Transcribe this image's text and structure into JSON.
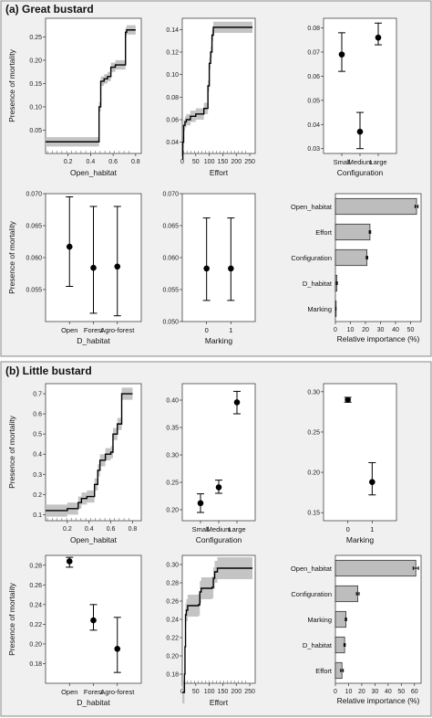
{
  "sections": [
    {
      "label": "(a) Great bustard",
      "charts": [
        {
          "kind": "pdp",
          "x": [
            0.0,
            0.47,
            0.475,
            0.49,
            0.52,
            0.55,
            0.58,
            0.62,
            0.66,
            0.7,
            0.71,
            0.72,
            0.8
          ],
          "y": [
            0.025,
            0.025,
            0.1,
            0.155,
            0.16,
            0.165,
            0.185,
            0.19,
            0.19,
            0.19,
            0.26,
            0.265,
            0.265
          ],
          "band": 0.01,
          "xlim": [
            0.0,
            0.85
          ],
          "ylim": [
            0.0,
            0.29
          ],
          "xticks": [
            0.2,
            0.4,
            0.6,
            0.8
          ],
          "yticks": [
            0.05,
            0.1,
            0.15,
            0.2,
            0.25
          ],
          "ticklabels_x": [
            "0.2",
            "0.4",
            "0.6",
            "0.8"
          ],
          "ticklabels_y": [
            "0.05",
            "0.10",
            "0.15",
            "0.20",
            "0.25"
          ],
          "xlabel": "Open_habitat",
          "ylabel": "Presence of mortality"
        },
        {
          "kind": "pdp",
          "x": [
            0,
            2,
            5,
            10,
            15,
            30,
            50,
            80,
            95,
            100,
            105,
            110,
            115,
            130,
            260
          ],
          "y": [
            0.025,
            0.04,
            0.055,
            0.058,
            0.06,
            0.063,
            0.065,
            0.07,
            0.09,
            0.11,
            0.12,
            0.135,
            0.142,
            0.142,
            0.142
          ],
          "band": 0.005,
          "xlim": [
            0,
            270
          ],
          "ylim": [
            0.03,
            0.15
          ],
          "xticks": [
            0,
            50,
            100,
            150,
            200,
            250
          ],
          "yticks": [
            0.04,
            0.06,
            0.08,
            0.1,
            0.12,
            0.14
          ],
          "ticklabels_x": [
            "0",
            "50",
            "100",
            "150",
            "200",
            "250"
          ],
          "ticklabels_y": [
            "0.04",
            "0.06",
            "0.08",
            "0.10",
            "0.12",
            "0.14"
          ],
          "xlabel": "Effort",
          "ylabel": ""
        },
        {
          "kind": "cat",
          "categories": [
            "Small",
            "Medium",
            "Large"
          ],
          "values": [
            0.069,
            0.037,
            0.076
          ],
          "lo": [
            0.062,
            0.03,
            0.073
          ],
          "hi": [
            0.078,
            0.045,
            0.082
          ],
          "ylim": [
            0.028,
            0.084
          ],
          "yticks": [
            0.03,
            0.04,
            0.05,
            0.06,
            0.07,
            0.08
          ],
          "ticklabels_y": [
            "0.03",
            "0.04",
            "0.05",
            "0.06",
            "0.07",
            "0.08"
          ],
          "xlabel": "Configuration",
          "ylabel": ""
        },
        {
          "kind": "cat",
          "categories": [
            "Open",
            "Forest",
            "Agro-forest"
          ],
          "values": [
            0.0617,
            0.0584,
            0.0586
          ],
          "lo": [
            0.0555,
            0.0513,
            0.0509
          ],
          "hi": [
            0.0695,
            0.068,
            0.068
          ],
          "ylim": [
            0.05,
            0.07
          ],
          "yticks": [
            0.055,
            0.06,
            0.065,
            0.07
          ],
          "ticklabels_y": [
            "0.055",
            "0.060",
            "0.065",
            "0.070"
          ],
          "xlabel": "D_habitat",
          "ylabel": "Presence of mortality"
        },
        {
          "kind": "cat",
          "categories": [
            "0",
            "1"
          ],
          "values": [
            0.0583,
            0.0583
          ],
          "lo": [
            0.0533,
            0.0533
          ],
          "hi": [
            0.0662,
            0.0662
          ],
          "ylim": [
            0.05,
            0.07
          ],
          "yticks": [
            0.05,
            0.055,
            0.06,
            0.065,
            0.07
          ],
          "ticklabels_y": [
            "0.050",
            "0.055",
            "0.060",
            "0.065",
            "0.070"
          ],
          "xlabel": "Marking",
          "ylabel": ""
        },
        {
          "kind": "bar",
          "categories": [
            "Open_habitat",
            "Effort",
            "Configuration",
            "D_habitat",
            "Marking"
          ],
          "values": [
            54,
            23,
            21,
            1,
            0.3
          ],
          "err": [
            1,
            0.5,
            0.5,
            0.3,
            0.1
          ],
          "xlim": [
            0,
            57
          ],
          "xticks": [
            0,
            10,
            20,
            30,
            40,
            50
          ],
          "ticklabels_x": [
            "0",
            "10",
            "20",
            "30",
            "40",
            "50"
          ],
          "xlabel": "Relative importance (%)",
          "ylabel": ""
        }
      ]
    },
    {
      "label": "(b) Little bustard",
      "charts": [
        {
          "kind": "pdp",
          "x": [
            0.0,
            0.1,
            0.2,
            0.3,
            0.33,
            0.38,
            0.45,
            0.48,
            0.5,
            0.55,
            0.6,
            0.62,
            0.66,
            0.7,
            0.8
          ],
          "y": [
            0.12,
            0.12,
            0.13,
            0.16,
            0.18,
            0.19,
            0.25,
            0.32,
            0.37,
            0.4,
            0.41,
            0.5,
            0.55,
            0.7,
            0.7
          ],
          "band": 0.03,
          "xlim": [
            0.0,
            0.88
          ],
          "ylim": [
            0.07,
            0.75
          ],
          "xticks": [
            0.2,
            0.4,
            0.6,
            0.8
          ],
          "yticks": [
            0.1,
            0.2,
            0.3,
            0.4,
            0.5,
            0.6,
            0.7
          ],
          "ticklabels_x": [
            "0.2",
            "0.4",
            "0.6",
            "0.8"
          ],
          "ticklabels_y": [
            "0.1",
            "0.2",
            "0.3",
            "0.4",
            "0.5",
            "0.6",
            "0.7"
          ],
          "xlabel": "Open_habitat",
          "ylabel": "Presence of mortality"
        },
        {
          "kind": "cat",
          "categories": [
            "Small",
            "Medium",
            "Large"
          ],
          "values": [
            0.212,
            0.241,
            0.396
          ],
          "lo": [
            0.195,
            0.23,
            0.375
          ],
          "hi": [
            0.229,
            0.254,
            0.416
          ],
          "ylim": [
            0.18,
            0.43
          ],
          "yticks": [
            0.2,
            0.25,
            0.3,
            0.35,
            0.4
          ],
          "ticklabels_y": [
            "0.20",
            "0.25",
            "0.30",
            "0.35",
            "0.40"
          ],
          "xlabel": "Configuration",
          "ylabel": ""
        },
        {
          "kind": "cat",
          "categories": [
            "0",
            "1"
          ],
          "values": [
            0.29,
            0.188
          ],
          "lo": [
            0.287,
            0.172
          ],
          "hi": [
            0.293,
            0.212
          ],
          "ylim": [
            0.14,
            0.31
          ],
          "yticks": [
            0.15,
            0.2,
            0.25,
            0.3
          ],
          "ticklabels_y": [
            "0.15",
            "0.20",
            "0.25",
            "0.30"
          ],
          "xlabel": "Marking",
          "ylabel": ""
        },
        {
          "kind": "cat",
          "categories": [
            "Open",
            "Forest",
            "Agro-forest"
          ],
          "values": [
            0.284,
            0.224,
            0.195
          ],
          "lo": [
            0.278,
            0.214,
            0.171
          ],
          "hi": [
            0.288,
            0.24,
            0.227
          ],
          "ylim": [
            0.16,
            0.29
          ],
          "yticks": [
            0.18,
            0.2,
            0.22,
            0.24,
            0.26,
            0.28
          ],
          "ticklabels_y": [
            "0.18",
            "0.20",
            "0.22",
            "0.24",
            "0.26",
            "0.28"
          ],
          "xlabel": "D_habitat",
          "ylabel": "Presence of mortality"
        },
        {
          "kind": "pdp",
          "x": [
            0,
            8,
            10,
            12,
            15,
            20,
            40,
            60,
            65,
            70,
            110,
            115,
            120,
            130,
            260
          ],
          "y": [
            0.16,
            0.18,
            0.21,
            0.245,
            0.25,
            0.255,
            0.255,
            0.256,
            0.27,
            0.274,
            0.275,
            0.285,
            0.292,
            0.296,
            0.296
          ],
          "band": 0.012,
          "xlim": [
            0,
            270
          ],
          "ylim": [
            0.17,
            0.31
          ],
          "xticks": [
            0,
            50,
            100,
            150,
            200,
            250
          ],
          "yticks": [
            0.18,
            0.2,
            0.22,
            0.24,
            0.26,
            0.28,
            0.3
          ],
          "ticklabels_x": [
            "0",
            "50",
            "100",
            "150",
            "200",
            "250"
          ],
          "ticklabels_y": [
            "0.18",
            "0.20",
            "0.22",
            "0.24",
            "0.26",
            "0.28",
            "0.30"
          ],
          "xlabel": "Effort",
          "ylabel": ""
        },
        {
          "kind": "bar",
          "categories": [
            "Open_habitat",
            "Configuration",
            "Marking",
            "D_habitat",
            "Effort"
          ],
          "values": [
            61,
            17,
            8,
            7,
            5
          ],
          "err": [
            2,
            1,
            0.5,
            0.5,
            1
          ],
          "xlim": [
            0,
            65
          ],
          "xticks": [
            0,
            10,
            20,
            30,
            40,
            50,
            60
          ],
          "ticklabels_x": [
            "0",
            "10",
            "20",
            "30",
            "40",
            "50",
            "60"
          ],
          "xlabel": "Relative importance (%)",
          "ylabel": ""
        }
      ]
    }
  ],
  "chart_data": [
    {
      "type": "line",
      "title": "(a) Great bustard",
      "xlabel": "Open_habitat",
      "ylabel": "Presence of mortality",
      "series": [
        {
          "x": [
            0.0,
            0.47,
            0.49,
            0.55,
            0.58,
            0.7,
            0.72,
            0.8
          ],
          "values": [
            0.025,
            0.025,
            0.155,
            0.165,
            0.185,
            0.19,
            0.265,
            0.265
          ]
        }
      ]
    },
    {
      "type": "line",
      "xlabel": "Effort",
      "series": [
        {
          "x": [
            0,
            10,
            50,
            100,
            115,
            260
          ],
          "values": [
            0.025,
            0.058,
            0.065,
            0.11,
            0.142,
            0.142
          ]
        }
      ]
    },
    {
      "type": "scatter",
      "xlabel": "Configuration",
      "categories": [
        "Small",
        "Medium",
        "Large"
      ],
      "values": [
        0.069,
        0.037,
        0.076
      ]
    },
    {
      "type": "scatter",
      "xlabel": "D_habitat",
      "ylabel": "Presence of mortality",
      "categories": [
        "Open",
        "Forest",
        "Agro-forest"
      ],
      "values": [
        0.0617,
        0.0584,
        0.0586
      ]
    },
    {
      "type": "scatter",
      "xlabel": "Marking",
      "categories": [
        "0",
        "1"
      ],
      "values": [
        0.0583,
        0.0583
      ]
    },
    {
      "type": "bar",
      "xlabel": "Relative importance (%)",
      "categories": [
        "Open_habitat",
        "Effort",
        "Configuration",
        "D_habitat",
        "Marking"
      ],
      "values": [
        54,
        23,
        21,
        1,
        0.3
      ]
    },
    {
      "type": "line",
      "title": "(b) Little bustard",
      "xlabel": "Open_habitat",
      "ylabel": "Presence of mortality",
      "series": [
        {
          "x": [
            0.0,
            0.2,
            0.33,
            0.45,
            0.5,
            0.62,
            0.7,
            0.8
          ],
          "values": [
            0.12,
            0.13,
            0.18,
            0.25,
            0.37,
            0.5,
            0.7,
            0.7
          ]
        }
      ]
    },
    {
      "type": "scatter",
      "xlabel": "Configuration",
      "categories": [
        "Small",
        "Medium",
        "Large"
      ],
      "values": [
        0.212,
        0.241,
        0.396
      ]
    },
    {
      "type": "scatter",
      "xlabel": "Marking",
      "categories": [
        "0",
        "1"
      ],
      "values": [
        0.29,
        0.188
      ]
    },
    {
      "type": "scatter",
      "xlabel": "D_habitat",
      "ylabel": "Presence of mortality",
      "categories": [
        "Open",
        "Forest",
        "Agro-forest"
      ],
      "values": [
        0.284,
        0.224,
        0.195
      ]
    },
    {
      "type": "line",
      "xlabel": "Effort",
      "series": [
        {
          "x": [
            0,
            12,
            60,
            70,
            120,
            260
          ],
          "values": [
            0.16,
            0.245,
            0.256,
            0.274,
            0.292,
            0.296
          ]
        }
      ]
    },
    {
      "type": "bar",
      "xlabel": "Relative importance (%)",
      "categories": [
        "Open_habitat",
        "Configuration",
        "Marking",
        "D_habitat",
        "Effort"
      ],
      "values": [
        61,
        17,
        8,
        7,
        5
      ]
    }
  ]
}
